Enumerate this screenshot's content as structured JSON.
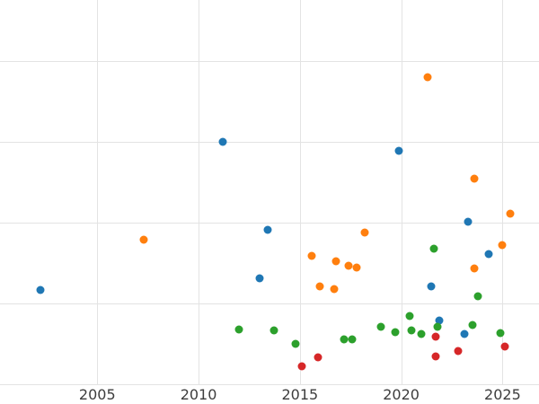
{
  "chart_data": {
    "type": "scatter",
    "title": "",
    "xlabel": "",
    "ylabel": "",
    "grid": true,
    "legend": "none",
    "x_ticks": [
      2005,
      2010,
      2015,
      2020,
      2025
    ],
    "xlim": [
      2000.2,
      2026.8
    ],
    "ylim": [
      0,
      4.75
    ],
    "y_gridline_values": [
      0,
      1,
      2,
      3,
      4
    ],
    "y_axis_note": "y axis tick labels not visible in image; y values are in estimated grid units",
    "series": [
      {
        "name": "blue",
        "color": "#1f77b4",
        "points": [
          [
            2002.2,
            1.17
          ],
          [
            2011.2,
            3.0
          ],
          [
            2013.0,
            1.31
          ],
          [
            2013.4,
            1.91
          ],
          [
            2019.9,
            2.89
          ],
          [
            2021.5,
            1.21
          ],
          [
            2021.9,
            0.79
          ],
          [
            2023.1,
            0.62
          ],
          [
            2023.3,
            2.01
          ],
          [
            2024.3,
            1.61
          ]
        ]
      },
      {
        "name": "orange",
        "color": "#ff7f0e",
        "points": [
          [
            2007.3,
            1.79
          ],
          [
            2015.6,
            1.59
          ],
          [
            2016.0,
            1.21
          ],
          [
            2016.7,
            1.18
          ],
          [
            2016.8,
            1.52
          ],
          [
            2017.4,
            1.46
          ],
          [
            2017.8,
            1.44
          ],
          [
            2018.2,
            1.88
          ],
          [
            2021.3,
            3.8
          ],
          [
            2023.6,
            2.54
          ],
          [
            2023.6,
            1.43
          ],
          [
            2025.0,
            1.72
          ],
          [
            2025.4,
            2.11
          ]
        ]
      },
      {
        "name": "green",
        "color": "#2ca02c",
        "points": [
          [
            2012.0,
            0.68
          ],
          [
            2013.7,
            0.67
          ],
          [
            2014.8,
            0.5
          ],
          [
            2017.2,
            0.56
          ],
          [
            2017.6,
            0.56
          ],
          [
            2019.0,
            0.71
          ],
          [
            2019.7,
            0.64
          ],
          [
            2020.4,
            0.84
          ],
          [
            2020.5,
            0.67
          ],
          [
            2021.0,
            0.62
          ],
          [
            2021.6,
            1.68
          ],
          [
            2021.8,
            0.71
          ],
          [
            2023.5,
            0.73
          ],
          [
            2023.8,
            1.09
          ],
          [
            2024.9,
            0.63
          ]
        ]
      },
      {
        "name": "red",
        "color": "#d62728",
        "points": [
          [
            2015.1,
            0.22
          ],
          [
            2015.9,
            0.33
          ],
          [
            2021.7,
            0.59
          ],
          [
            2021.7,
            0.34
          ],
          [
            2022.8,
            0.41
          ],
          [
            2025.1,
            0.47
          ]
        ]
      }
    ]
  }
}
